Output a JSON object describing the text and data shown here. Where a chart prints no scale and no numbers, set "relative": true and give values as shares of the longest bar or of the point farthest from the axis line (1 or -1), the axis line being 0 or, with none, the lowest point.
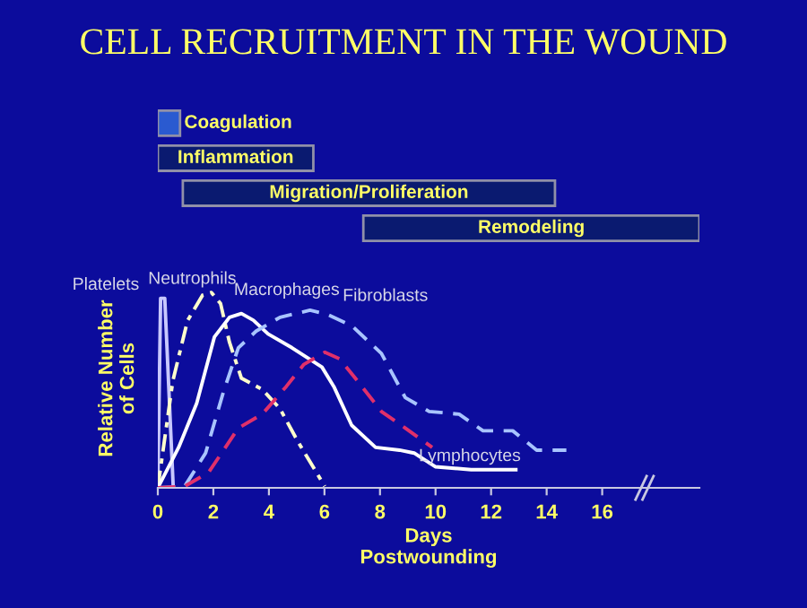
{
  "chart_data": [
    {
      "type": "bar",
      "title": "CELL RECRUITMENT IN THE WOUND",
      "orientation": "horizontal",
      "categories": [
        "Coagulation",
        "Inflammation",
        "Migration/Proliferation",
        "Remodeling"
      ],
      "base": [
        0,
        0,
        0.9,
        7.4
      ],
      "values": [
        0.8,
        5.6,
        13.4,
        12.1
      ],
      "colors": [
        "#2a5ad0",
        "#0a1a70",
        "#0a1a70",
        "#0a1a70"
      ],
      "xlim": [
        0,
        19.5
      ]
    },
    {
      "type": "line",
      "relative": true,
      "xlabel": "Days\nPostwounding",
      "ylabel": "Relative Number\nof Cells",
      "xlim": [
        0,
        19.5
      ],
      "xticks": [
        0,
        2,
        4,
        6,
        8,
        10,
        12,
        14,
        16
      ],
      "series": [
        {
          "color": "#c8c8ff",
          "line_style": "solid",
          "x": [
            0,
            0.1,
            0.25,
            0.55
          ],
          "values": [
            0,
            0.97,
            0.97,
            0.02
          ]
        },
        {
          "color": "#ffffcc",
          "line_style": "dashdot",
          "x": [
            0,
            0.54,
            1.07,
            1.61,
            1.93,
            2.26,
            2.58,
            3.01,
            3.76,
            4.4,
            5.05,
            6.01
          ],
          "values": [
            0,
            0.547,
            0.856,
            0.986,
            1.0,
            0.943,
            0.745,
            0.561,
            0.504,
            0.405,
            0.235,
            0.008
          ]
        },
        {
          "color": "#ffffff",
          "line_style": "solid",
          "x": [
            0,
            0.75,
            1.4,
            2.04,
            2.58,
            3.01,
            3.44,
            3.97,
            4.83,
            5.91,
            6.34,
            6.98,
            7.84,
            8.7,
            9.23,
            9.99,
            11.28,
            12.89
          ],
          "values": [
            0,
            0.207,
            0.433,
            0.773,
            0.873,
            0.892,
            0.858,
            0.788,
            0.717,
            0.618,
            0.518,
            0.32,
            0.207,
            0.193,
            0.178,
            0.108,
            0.093,
            0.093
          ]
        },
        {
          "color": "#a8c4ff",
          "line_style": "dashed",
          "x": [
            0,
            0.97,
            1.72,
            2.36,
            2.9,
            3.54,
            4.4,
            5.48,
            6.12,
            6.98,
            8.05,
            8.91,
            9.77,
            10.85,
            11.71,
            12.78,
            13.64,
            14.71
          ],
          "values": [
            0,
            0.008,
            0.178,
            0.49,
            0.717,
            0.802,
            0.873,
            0.909,
            0.887,
            0.83,
            0.688,
            0.462,
            0.391,
            0.377,
            0.292,
            0.292,
            0.193,
            0.193
          ]
        },
        {
          "color": "#e0306a",
          "line_style": "dashed",
          "x": [
            0,
            0.97,
            1.83,
            2.9,
            3.76,
            4.62,
            5.26,
            6.01,
            6.55,
            7.19,
            8.05,
            8.91,
            9.88
          ],
          "values": [
            0,
            0.008,
            0.079,
            0.306,
            0.377,
            0.518,
            0.632,
            0.694,
            0.66,
            0.547,
            0.391,
            0.306,
            0.207
          ]
        }
      ],
      "annotations": [
        {
          "text": "Platelets",
          "x": 0.1,
          "y": 0.97
        },
        {
          "text": "Neutrophils",
          "x": 1.93,
          "y": 1.0
        },
        {
          "text": "Macrophages",
          "x": 3.01,
          "y": 0.892
        },
        {
          "text": "Fibroblasts",
          "x": 6.12,
          "y": 0.887
        },
        {
          "text": "Lymphocytes",
          "x": 12.89,
          "y": 0.093
        }
      ]
    }
  ]
}
